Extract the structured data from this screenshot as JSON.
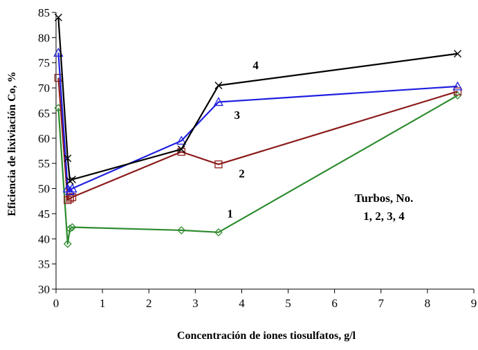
{
  "chart_data": {
    "type": "line",
    "xlabel": "Concentración de iones tiosulfatos, g/l",
    "ylabel": "Eficiencia de lixiviación Co, %",
    "xlim": [
      0,
      9
    ],
    "ylim": [
      30,
      85
    ],
    "x_ticks": [
      0,
      1,
      2,
      3,
      4,
      5,
      6,
      7,
      8,
      9
    ],
    "y_ticks": [
      30,
      35,
      40,
      45,
      50,
      55,
      60,
      65,
      70,
      75,
      80,
      85
    ],
    "grid": false,
    "legend": "none",
    "annotation": [
      "Turbos, No.",
      "1, 2, 3, 4"
    ],
    "series": [
      {
        "label": "1",
        "color": "#2e8b2e",
        "marker": "diamond",
        "points": [
          [
            0.05,
            66
          ],
          [
            0.25,
            39
          ],
          [
            0.3,
            42
          ],
          [
            0.35,
            42.3
          ],
          [
            2.7,
            41.7
          ],
          [
            3.5,
            41.3
          ],
          [
            8.65,
            68.5
          ]
        ]
      },
      {
        "label": "2",
        "color": "#8b1a1a",
        "marker": "square",
        "points": [
          [
            0.05,
            72
          ],
          [
            0.25,
            47.7
          ],
          [
            0.3,
            48
          ],
          [
            0.35,
            48.3
          ],
          [
            2.7,
            57.3
          ],
          [
            3.5,
            54.8
          ],
          [
            8.65,
            69.3
          ]
        ]
      },
      {
        "label": "3",
        "color": "#1f1fe0",
        "marker": "triangle",
        "points": [
          [
            0.05,
            77
          ],
          [
            0.25,
            50
          ],
          [
            0.3,
            49.5
          ],
          [
            0.35,
            50
          ],
          [
            2.7,
            59.5
          ],
          [
            3.5,
            67.2
          ],
          [
            8.65,
            70.3
          ]
        ]
      },
      {
        "label": "4",
        "color": "#000000",
        "marker": "x",
        "points": [
          [
            0.05,
            84
          ],
          [
            0.25,
            56
          ],
          [
            0.3,
            51.5
          ],
          [
            0.35,
            51.8
          ],
          [
            2.7,
            57.8
          ],
          [
            3.5,
            70.5
          ],
          [
            8.65,
            76.8
          ]
        ]
      }
    ]
  }
}
